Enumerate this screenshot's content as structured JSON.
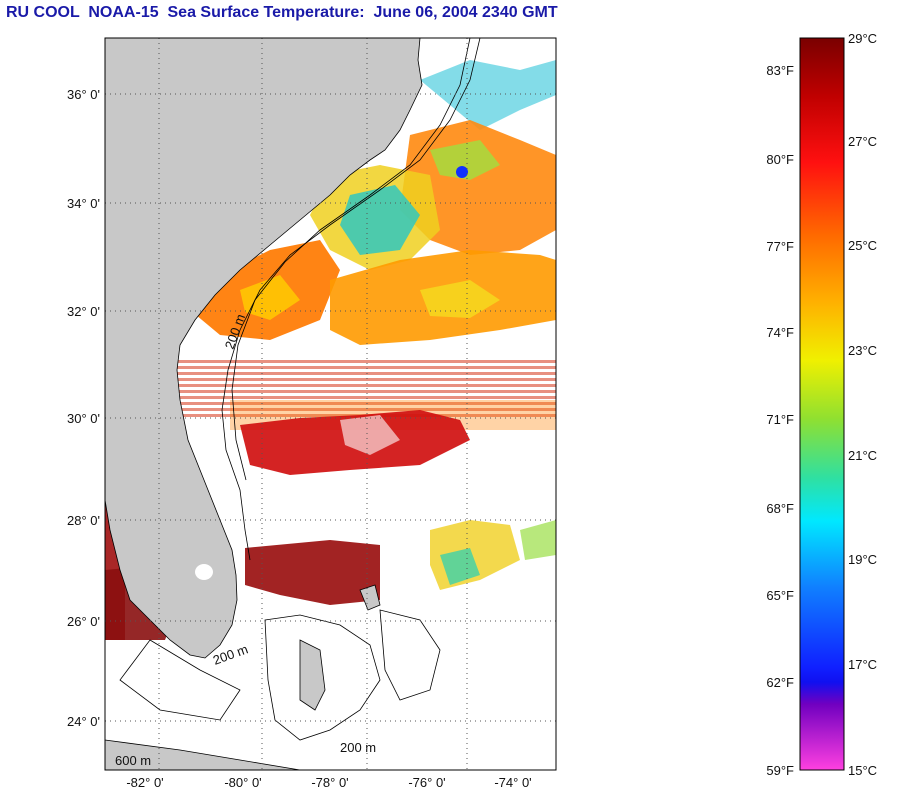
{
  "title": "RU COOL  NOAA-15  Sea Surface Temperature:  June 06, 2004 2340 GMT",
  "map": {
    "lat_ticks": [
      "36° 0'",
      "34° 0'",
      "32° 0'",
      "30° 0'",
      "28° 0'",
      "26° 0'",
      "24° 0'"
    ],
    "lon_ticks": [
      "-82° 0'",
      "-80° 0'",
      "-78° 0'",
      "-76° 0'",
      "-74° 0'"
    ],
    "contour_labels": [
      "200 m",
      "200 m",
      "600 m",
      "200 m"
    ],
    "colors": {
      "land": "#c8c8c8",
      "frame": "#000000",
      "grid": "#555555"
    }
  },
  "colorbar": {
    "celsius_ticks": [
      "29°C",
      "27°C",
      "25°C",
      "23°C",
      "21°C",
      "19°C",
      "17°C",
      "15°C"
    ],
    "fahrenheit_ticks": [
      "83°F",
      "80°F",
      "77°F",
      "74°F",
      "71°F",
      "68°F",
      "65°F",
      "62°F",
      "59°F"
    ],
    "gradient": [
      "#7a0000",
      "#c00000",
      "#ff1010",
      "#ff6a00",
      "#ffb000",
      "#f0f000",
      "#90e030",
      "#30e0a0",
      "#00e8ff",
      "#1080ff",
      "#1020ff",
      "#7000c0",
      "#ff40e0"
    ]
  }
}
